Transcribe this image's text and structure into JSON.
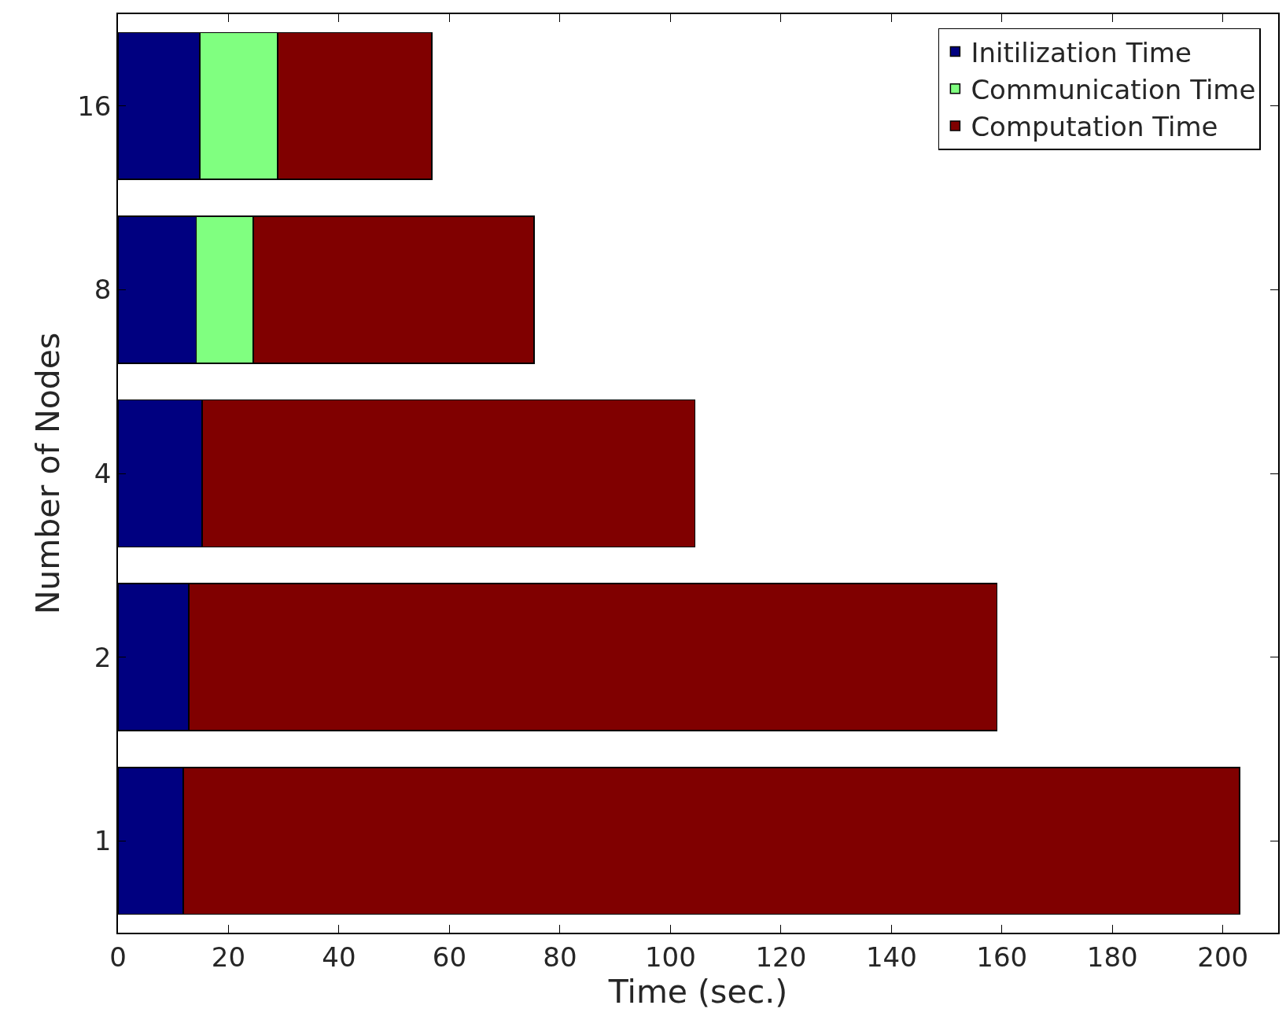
{
  "chart_data": {
    "type": "bar",
    "orientation": "horizontal",
    "stacked": true,
    "categories": [
      "16",
      "8",
      "4",
      "2",
      "1"
    ],
    "series": [
      {
        "name": "Initilization Time",
        "color": "#000080",
        "values": [
          14.8,
          14.2,
          15.2,
          12.8,
          11.8
        ]
      },
      {
        "name": "Communication Time",
        "color": "#80ff80",
        "values": [
          14.1,
          10.3,
          0,
          0,
          0
        ]
      },
      {
        "name": "Computation Time",
        "color": "#800000",
        "values": [
          27.9,
          50.8,
          89.2,
          146.3,
          191.2
        ]
      }
    ],
    "xlabel": "Time (sec.)",
    "ylabel": "Number of Nodes",
    "xlim": [
      0,
      210
    ],
    "xticks": [
      0,
      20,
      40,
      60,
      80,
      100,
      120,
      140,
      160,
      180,
      200
    ],
    "legend": "top right"
  }
}
